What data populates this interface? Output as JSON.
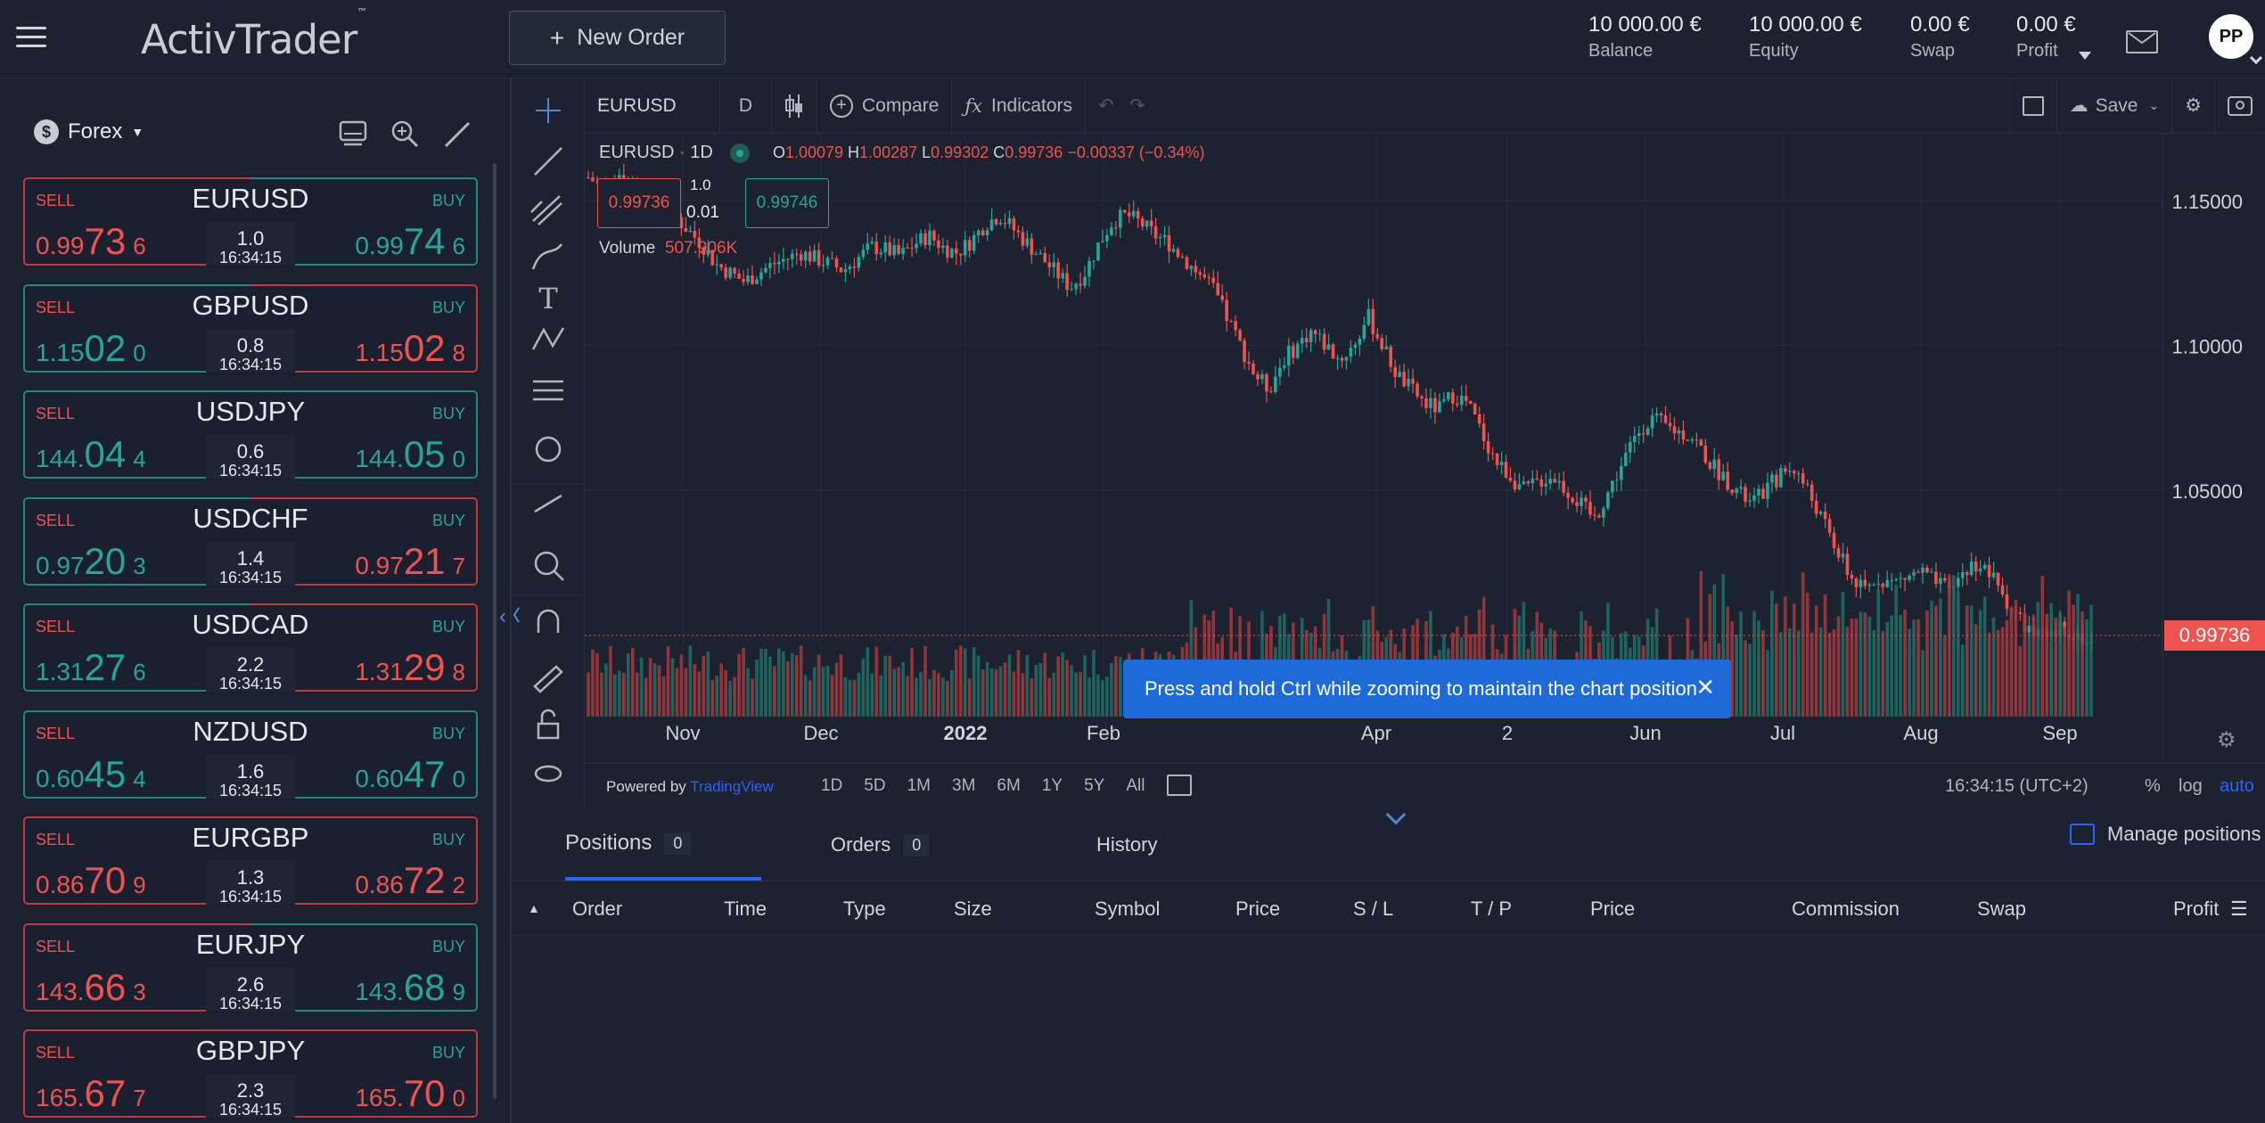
{
  "header": {
    "brand": "ActivTrader",
    "brand_tm": "™",
    "new_order_label": "New Order",
    "account": [
      {
        "value": "10 000.00 €",
        "label": "Balance"
      },
      {
        "value": "10 000.00 €",
        "label": "Equity"
      },
      {
        "value": "0.00 €",
        "label": "Swap"
      },
      {
        "value": "0.00 €",
        "label": "Profit"
      }
    ],
    "avatar_initials": "PP"
  },
  "sidebar": {
    "category": "Forex",
    "sell_label": "SELL",
    "buy_label": "BUY",
    "instruments": [
      {
        "symbol": "EURUSD",
        "spread": "1.0",
        "time": "16:34:15",
        "bid": [
          "0.99",
          "73",
          "6"
        ],
        "ask": [
          "0.99",
          "74",
          "6"
        ],
        "bid_color": "red",
        "ask_color": "green"
      },
      {
        "symbol": "GBPUSD",
        "spread": "0.8",
        "time": "16:34:15",
        "bid": [
          "1.15",
          "02",
          "0"
        ],
        "ask": [
          "1.15",
          "02",
          "8"
        ],
        "bid_color": "green",
        "ask_color": "red"
      },
      {
        "symbol": "USDJPY",
        "spread": "0.6",
        "time": "16:34:15",
        "bid": [
          "144.",
          "04",
          "4"
        ],
        "ask": [
          "144.",
          "05",
          "0"
        ],
        "bid_color": "green",
        "ask_color": "green"
      },
      {
        "symbol": "USDCHF",
        "spread": "1.4",
        "time": "16:34:15",
        "bid": [
          "0.97",
          "20",
          "3"
        ],
        "ask": [
          "0.97",
          "21",
          "7"
        ],
        "bid_color": "green",
        "ask_color": "red"
      },
      {
        "symbol": "USDCAD",
        "spread": "2.2",
        "time": "16:34:15",
        "bid": [
          "1.31",
          "27",
          "6"
        ],
        "ask": [
          "1.31",
          "29",
          "8"
        ],
        "bid_color": "green",
        "ask_color": "red"
      },
      {
        "symbol": "NZDUSD",
        "spread": "1.6",
        "time": "16:34:15",
        "bid": [
          "0.60",
          "45",
          "4"
        ],
        "ask": [
          "0.60",
          "47",
          "0"
        ],
        "bid_color": "green",
        "ask_color": "green"
      },
      {
        "symbol": "EURGBP",
        "spread": "1.3",
        "time": "16:34:15",
        "bid": [
          "0.86",
          "70",
          "9"
        ],
        "ask": [
          "0.86",
          "72",
          "2"
        ],
        "bid_color": "red",
        "ask_color": "red"
      },
      {
        "symbol": "EURJPY",
        "spread": "2.6",
        "time": "16:34:15",
        "bid": [
          "143.",
          "66",
          "3"
        ],
        "ask": [
          "143.",
          "68",
          "9"
        ],
        "bid_color": "red",
        "ask_color": "green"
      },
      {
        "symbol": "GBPJPY",
        "spread": "2.3",
        "time": "16:34:15",
        "bid": [
          "165.",
          "67",
          "7"
        ],
        "ask": [
          "165.",
          "70",
          "0"
        ],
        "bid_color": "red",
        "ask_color": "red"
      }
    ]
  },
  "chart_toolbar": {
    "symbol": "EURUSD",
    "interval": "D",
    "compare": "Compare",
    "indicators": "Indicators",
    "save": "Save"
  },
  "chart_legend": {
    "symbol": "EURUSD",
    "interval": "1D",
    "o_label": "O",
    "o": "1.00079",
    "h_label": "H",
    "h": "1.00287",
    "l_label": "L",
    "l": "0.99302",
    "c_label": "C",
    "c": "0.99736",
    "change": "−0.00337 (−0.34%)",
    "sell_price": "0.99736",
    "buy_price": "0.99746",
    "spread": "1.0",
    "qty": "0.01",
    "volume_label": "Volume",
    "volume": "507.906K"
  },
  "chart_data": {
    "type": "candlestick",
    "y_ticks": [
      "1.15000",
      "1.10000",
      "1.05000"
    ],
    "ylim": [
      0.97,
      1.17
    ],
    "x_ticks": [
      "Nov",
      "Dec",
      "2022",
      "Feb",
      "Apr",
      "2",
      "Jun",
      "Jul",
      "Aug",
      "Sep"
    ],
    "last_price": "0.99736",
    "series": [
      {
        "name": "EURUSD",
        "approx_closes": [
          1.158,
          1.155,
          1.16,
          1.156,
          1.152,
          1.15,
          1.145,
          1.14,
          1.135,
          1.128,
          1.125,
          1.122,
          1.125,
          1.128,
          1.13,
          1.132,
          1.13,
          1.128,
          1.126,
          1.13,
          1.134,
          1.133,
          1.131,
          1.135,
          1.138,
          1.134,
          1.132,
          1.136,
          1.142,
          1.145,
          1.14,
          1.135,
          1.13,
          1.125,
          1.12,
          1.125,
          1.135,
          1.143,
          1.145,
          1.142,
          1.138,
          1.135,
          1.13,
          1.125,
          1.12,
          1.11,
          1.1,
          1.09,
          1.085,
          1.095,
          1.1,
          1.105,
          1.1,
          1.095,
          1.1,
          1.11,
          1.1,
          1.09,
          1.085,
          1.08,
          1.078,
          1.083,
          1.08,
          1.07,
          1.06,
          1.055,
          1.05,
          1.053,
          1.055,
          1.05,
          1.045,
          1.04,
          1.05,
          1.06,
          1.07,
          1.075,
          1.072,
          1.07,
          1.068,
          1.06,
          1.055,
          1.05,
          1.045,
          1.05,
          1.055,
          1.058,
          1.05,
          1.04,
          1.03,
          1.02,
          1.015,
          1.02,
          1.018,
          1.02,
          1.022,
          1.018,
          1.015,
          1.022,
          1.025,
          1.02,
          1.012,
          1.005,
          1.0,
          0.998,
          1.003,
          1.0,
          0.997
        ]
      }
    ]
  },
  "chart_footer": {
    "powered_by": "Powered by",
    "tradingview": "TradingView",
    "ranges": [
      "1D",
      "5D",
      "1M",
      "3M",
      "6M",
      "1Y",
      "5Y",
      "All"
    ],
    "clock": "16:34:15 (UTC+2)",
    "pct": "%",
    "log": "log",
    "auto": "auto"
  },
  "toast": "Press and hold Ctrl while zooming to maintain the chart position",
  "positions": {
    "tabs": [
      {
        "label": "Positions",
        "count": "0"
      },
      {
        "label": "Orders",
        "count": "0"
      },
      {
        "label": "History",
        "count": ""
      }
    ],
    "manage": "Manage positions",
    "columns": [
      "Order",
      "Time",
      "Type",
      "Size",
      "Symbol",
      "Price",
      "S / L",
      "T / P",
      "Price",
      "Commission",
      "Swap",
      "Profit"
    ]
  }
}
